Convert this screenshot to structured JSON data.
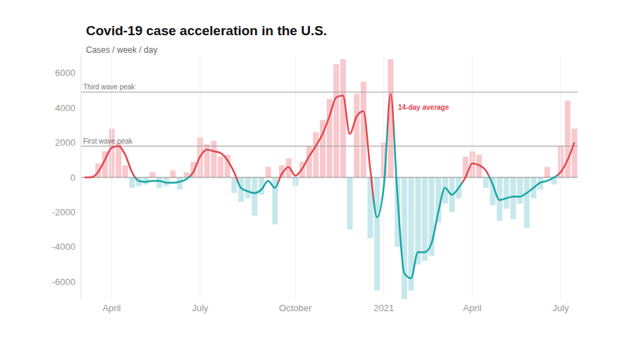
{
  "chart_data": {
    "type": "line",
    "title": "Covid-19 case acceleration in the U.S.",
    "subtitle": "Cases / week / day",
    "categories": [
      null,
      null,
      null,
      null,
      "April",
      null,
      null,
      null,
      null,
      null,
      null,
      null,
      null,
      null,
      null,
      null,
      null,
      "July",
      null,
      null,
      null,
      null,
      null,
      null,
      null,
      null,
      null,
      null,
      null,
      null,
      null,
      "October",
      null,
      null,
      null,
      null,
      null,
      null,
      null,
      null,
      null,
      null,
      null,
      null,
      "2021",
      null,
      null,
      null,
      null,
      null,
      null,
      null,
      null,
      null,
      null,
      null,
      null,
      "April",
      null,
      null,
      null,
      null,
      null,
      null,
      null,
      null,
      null,
      null,
      null,
      null,
      "July",
      null,
      null
    ],
    "series": [
      {
        "name": "14-day average",
        "type": "line",
        "colors": [
          "#e2474e",
          "#e2474e",
          "#e2474e",
          "#e2474e",
          "#e2474e",
          "#e2474e",
          "#e2474e",
          "#e2474e",
          "#17a5a5",
          "#17a5a5",
          "#17a5a5",
          "#17a5a5",
          "#17a5a5",
          "#17a5a5",
          "#17a5a5",
          "#17a5a5",
          "#e2474e",
          "#e2474e",
          "#e2474e",
          "#e2474e",
          "#e2474e",
          "#e2474e",
          "#e2474e",
          "#17a5a5",
          "#17a5a5",
          "#17a5a5",
          "#17a5a5",
          "#17a5a5",
          "#17a5a5",
          "#e2474e",
          "#e2474e",
          "#e2474e",
          "#e2474e",
          "#e2474e",
          "#e2474e",
          "#e2474e",
          "#e2474e",
          "#e2474e",
          "#e2474e",
          "#e2474e",
          "#e2474e",
          "#e2474e",
          "#e2474e",
          "#17a5a5",
          "#17a5a5",
          "#e2474e",
          "#17a5a5",
          "#17a5a5",
          "#17a5a5",
          "#17a5a5",
          "#17a5a5",
          "#17a5a5",
          "#17a5a5",
          "#17a5a5",
          "#17a5a5",
          "#17a5a5",
          "#e2474e",
          "#e2474e",
          "#e2474e",
          "#e2474e",
          "#17a5a5",
          "#17a5a5",
          "#17a5a5",
          "#17a5a5",
          "#17a5a5",
          "#17a5a5",
          "#17a5a5",
          "#17a5a5",
          "#17a5a5",
          "#17a5a5",
          "#e2474e",
          "#e2474e",
          "#e2474e"
        ],
        "values": [
          0,
          0,
          300,
          1000,
          1700,
          1800,
          1300,
          300,
          -200,
          -250,
          -200,
          -200,
          -300,
          -300,
          -250,
          -100,
          300,
          1200,
          1600,
          1500,
          1400,
          1000,
          300,
          -600,
          -800,
          -900,
          -700,
          -200,
          -600,
          200,
          600,
          100,
          500,
          1200,
          1800,
          2500,
          3500,
          4600,
          4700,
          2500,
          3500,
          3800,
          500,
          -2300,
          -500,
          4800,
          -1000,
          -5500,
          -5800,
          -4300,
          -4300,
          -3800,
          -2000,
          -600,
          -1000,
          -600,
          0,
          800,
          700,
          400,
          -400,
          -1300,
          -1200,
          -1100,
          -1100,
          -900,
          -600,
          -300,
          -200,
          0,
          300,
          1000,
          2000
        ]
      },
      {
        "type": "bar",
        "colors": [
          "#f9c8cc",
          "#f9c8cc",
          "#f9c8cc",
          "#f9c8cc",
          "#f9c8cc",
          "#f9c8cc",
          "#f9c8cc",
          "#c6e8ec",
          "#c6e8ec",
          "#c6e8ec",
          "#f9c8cc",
          "#c6e8ec",
          "#c6e8ec",
          "#f9c8cc",
          "#c6e8ec",
          "#f9c8cc",
          "#f9c8cc",
          "#f9c8cc",
          "#f9c8cc",
          "#f9c8cc",
          "#f9c8cc",
          "#f9c8cc",
          "#c6e8ec",
          "#c6e8ec",
          "#c6e8ec",
          "#c6e8ec",
          "#c6e8ec",
          "#f9c8cc",
          "#c6e8ec",
          "#f9c8cc",
          "#f9c8cc",
          "#c6e8ec",
          "#f9c8cc",
          "#f9c8cc",
          "#f9c8cc",
          "#f9c8cc",
          "#f9c8cc",
          "#f9c8cc",
          "#f9c8cc",
          "#c6e8ec",
          "#f9c8cc",
          "#f9c8cc",
          "#c6e8ec",
          "#c6e8ec",
          "#f9c8cc",
          "#f9c8cc",
          "#c6e8ec",
          "#c6e8ec",
          "#c6e8ec",
          "#c6e8ec",
          "#c6e8ec",
          "#c6e8ec",
          "#c6e8ec",
          "#c6e8ec",
          "#c6e8ec",
          "#c6e8ec",
          "#f9c8cc",
          "#f9c8cc",
          "#f9c8cc",
          "#c6e8ec",
          "#c6e8ec",
          "#c6e8ec",
          "#c6e8ec",
          "#c6e8ec",
          "#c6e8ec",
          "#c6e8ec",
          "#c6e8ec",
          "#c6e8ec",
          "#f9c8cc",
          "#c6e8ec",
          "#f9c8cc",
          "#f9c8cc",
          "#f9c8cc"
        ],
        "values": [
          0,
          100,
          800,
          1500,
          2800,
          2000,
          700,
          -600,
          -500,
          -400,
          300,
          -600,
          -500,
          400,
          -700,
          300,
          900,
          2300,
          1900,
          2100,
          1200,
          1300,
          -900,
          -1400,
          -1200,
          -2200,
          -1000,
          600,
          -2700,
          700,
          1100,
          -500,
          900,
          1800,
          2600,
          3300,
          4500,
          6500,
          6800,
          -3000,
          4800,
          5500,
          -3500,
          -6500,
          2000,
          6800,
          -4000,
          -7000,
          -6500,
          -5000,
          -4800,
          -4500,
          -2600,
          -1500,
          -2000,
          -1200,
          1200,
          1500,
          1300,
          -600,
          -1600,
          -2500,
          -1800,
          -2400,
          -1500,
          -2900,
          -1200,
          -700,
          600,
          -400,
          1800,
          4400,
          2800
        ]
      }
    ],
    "ylim": [
      -7000,
      7000
    ],
    "yticks": [
      -6000,
      -4000,
      -2000,
      0,
      2000,
      4000,
      6000
    ],
    "grid": true,
    "annotations": [
      {
        "label": "First wave peak",
        "value": 1800
      },
      {
        "label": "Third wave peak",
        "value": 4900
      }
    ]
  }
}
